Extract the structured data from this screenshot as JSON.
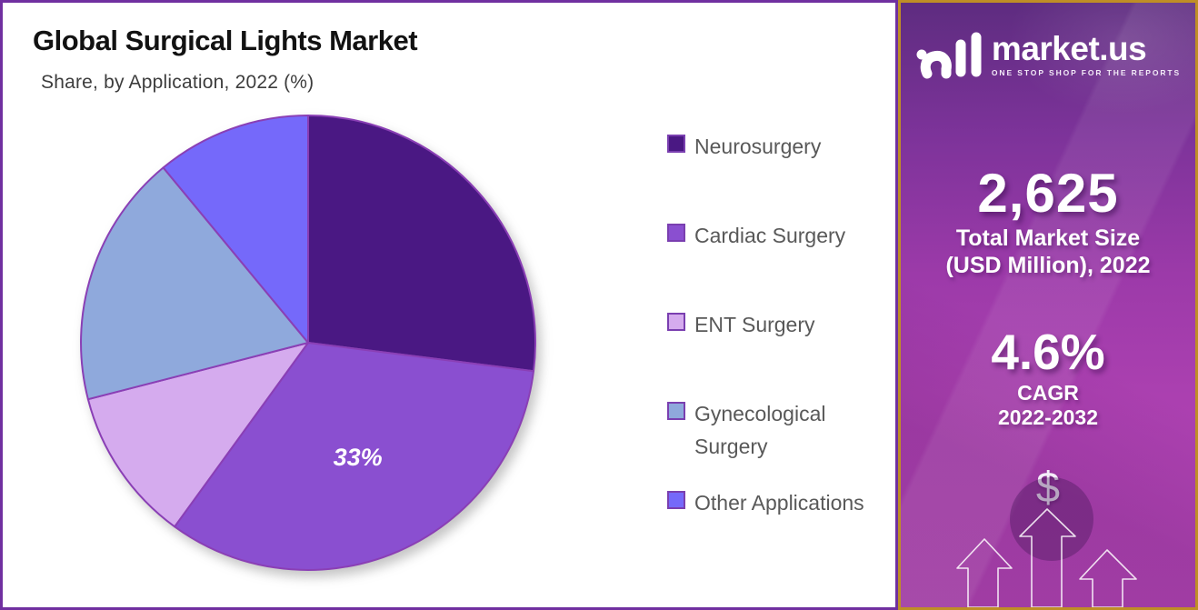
{
  "header": {
    "title": "Global Surgical Lights Market",
    "subtitle": "Share, by Application, 2022 (%)"
  },
  "chart_data": {
    "type": "pie",
    "title": "Global Surgical Lights Market",
    "subtitle": "Share, by Application, 2022 (%)",
    "unit": "percent",
    "start_angle_deg": 0,
    "direction": "clockwise",
    "legend_position": "right",
    "slices": [
      {
        "label": "Neurosurgery",
        "value": 27,
        "color": "#4a1883",
        "data_label": ""
      },
      {
        "label": "Cardiac Surgery",
        "value": 33,
        "color": "#8a4fd0",
        "data_label": "33%"
      },
      {
        "label": "ENT Surgery",
        "value": 11,
        "color": "#d5abee",
        "data_label": ""
      },
      {
        "label": "Gynecological Surgery",
        "value": 18,
        "color": "#8fa9dc",
        "data_label": ""
      },
      {
        "label": "Other Applications",
        "value": 11,
        "color": "#7569fa",
        "data_label": ""
      }
    ],
    "note": "Only the Cardiac Surgery slice has a printed data label (33%); other slice shares are estimated from arc angles."
  },
  "sidebar": {
    "logo": {
      "brand": "market.us",
      "tagline": "ONE STOP SHOP FOR THE REPORTS"
    },
    "market_size": {
      "value": "2,625",
      "label_line1": "Total Market Size",
      "label_line2": "(USD Million), 2022"
    },
    "cagr": {
      "value": "4.6%",
      "label_line1": "CAGR",
      "label_line2": "2022-2032"
    },
    "dollar_symbol": "$"
  },
  "colors": {
    "chart_border": "#7030a0",
    "sidebar_border": "#bf8e26",
    "slice_stroke": "#8a3fb5",
    "legend_text": "#595959",
    "data_label_text": "#ffffff"
  }
}
